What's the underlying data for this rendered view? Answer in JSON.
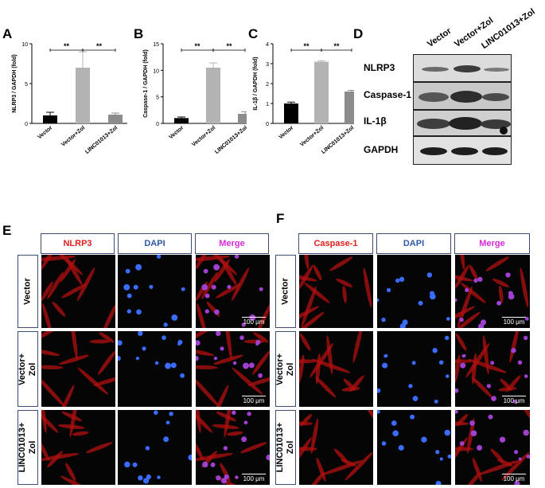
{
  "panel_letters": {
    "a": "A",
    "b": "B",
    "c": "C",
    "d": "D",
    "e": "E",
    "f": "F"
  },
  "chart_data": [
    {
      "type": "bar",
      "panel": "A",
      "ylabel": "NLRP3 / GAPDH (fold)",
      "categories": [
        "Vector",
        "Vector+Zol",
        "LINC01013+Zol"
      ],
      "values": [
        1.0,
        7.0,
        1.1
      ],
      "errors": [
        0.4,
        2.0,
        0.2
      ],
      "ylim": [
        0,
        10
      ],
      "yticks": [
        0,
        5,
        10
      ],
      "bar_colors": [
        "#000000",
        "#b3b3b3",
        "#8c8c8c"
      ],
      "significance": [
        {
          "from": 0,
          "to": 1,
          "label": "**"
        },
        {
          "from": 1,
          "to": 2,
          "label": "**"
        }
      ]
    },
    {
      "type": "bar",
      "panel": "B",
      "ylabel": "Caspase-1 / GAPDH (fold)",
      "categories": [
        "Vector",
        "Vector+Zol",
        "LINC01013+Zol"
      ],
      "values": [
        1.0,
        10.5,
        1.8
      ],
      "errors": [
        0.2,
        0.9,
        0.4
      ],
      "ylim": [
        0,
        15
      ],
      "yticks": [
        0,
        5,
        10,
        15
      ],
      "bar_colors": [
        "#000000",
        "#b3b3b3",
        "#8c8c8c"
      ],
      "significance": [
        {
          "from": 0,
          "to": 1,
          "label": "**"
        },
        {
          "from": 1,
          "to": 2,
          "label": "**"
        }
      ]
    },
    {
      "type": "bar",
      "panel": "C",
      "ylabel": "IL-1β / GAPDH (fold)",
      "categories": [
        "Vector",
        "Vector+Zol",
        "LINC01013+Zol"
      ],
      "values": [
        1.0,
        3.1,
        1.6
      ],
      "errors": [
        0.07,
        0.05,
        0.06
      ],
      "ylim": [
        0,
        4
      ],
      "yticks": [
        0,
        1,
        2,
        3,
        4
      ],
      "bar_colors": [
        "#000000",
        "#b3b3b3",
        "#8c8c8c"
      ],
      "significance": [
        {
          "from": 0,
          "to": 1,
          "label": "**"
        },
        {
          "from": 1,
          "to": 2,
          "label": "**"
        }
      ]
    }
  ],
  "blot": {
    "lanes": [
      "Vector",
      "Vector+Zol",
      "LINC01013+Zol"
    ],
    "rows": [
      "NLRP3",
      "Caspase-1",
      "IL-1β",
      "GAPDH"
    ]
  },
  "if_left": {
    "columns": [
      "NLRP3",
      "DAPI",
      "Merge"
    ],
    "column_colors": [
      "#e0201b",
      "#2f5aa8",
      "#d62ad6"
    ],
    "rows": [
      "Vector",
      "Vector+\nZol",
      "LINC01013+\nZol"
    ]
  },
  "if_right": {
    "columns": [
      "Caspase-1",
      "DAPI",
      "Merge"
    ],
    "column_colors": [
      "#e0201b",
      "#2f5aa8",
      "#d62ad6"
    ],
    "rows": [
      "Vector",
      "Vector+\nZol",
      "LINC01013+\nZol"
    ]
  },
  "scale_label": "100 μm"
}
